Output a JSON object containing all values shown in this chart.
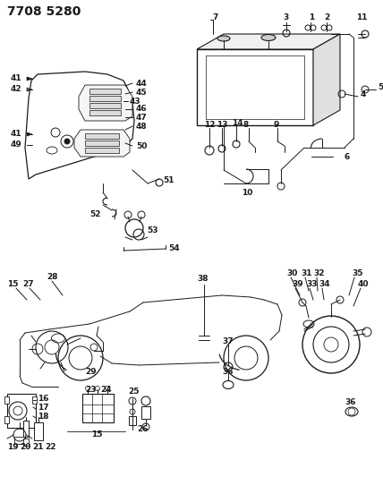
{
  "title": "7708 5280",
  "bg_color": "#ffffff",
  "line_color": "#1a1a1a",
  "title_fontsize": 10,
  "label_fontsize": 6.5,
  "fig_width": 4.28,
  "fig_height": 5.33,
  "dpi": 100
}
